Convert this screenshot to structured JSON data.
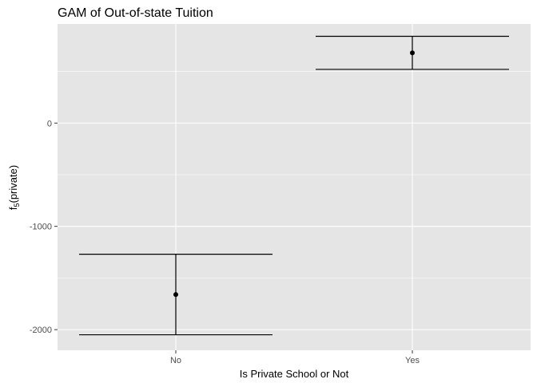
{
  "chart_data": {
    "type": "errorbar",
    "title": "GAM of Out-of-state Tuition",
    "xlabel": "Is Private School or Not",
    "ylabel_main": "f",
    "ylabel_sub": "5",
    "ylabel_tail": "(private)",
    "categories": [
      "No",
      "Yes"
    ],
    "estimates": [
      -1660,
      680
    ],
    "lower": [
      -2050,
      520
    ],
    "upper": [
      -1270,
      840
    ],
    "ylim": [
      -2200,
      960
    ],
    "yticks": [
      -2000,
      -1000,
      0
    ],
    "ytick_labels": [
      "-2000",
      "-1000",
      "0"
    ],
    "grid": true,
    "colors": {
      "panel": "#e5e5e5",
      "grid": "#ffffff",
      "mark": "#000000"
    }
  }
}
